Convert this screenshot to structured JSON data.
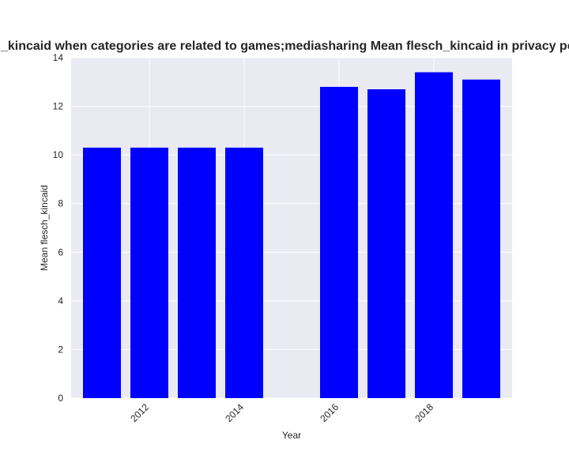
{
  "chart_data": {
    "type": "bar",
    "title": "Mean flesch_kincaid when categories are related to games;mediasharing Mean flesch_kincaid in privacy policies by Year",
    "xlabel": "Year",
    "ylabel": "Mean flesch_kincaid",
    "x": [
      2011,
      2012,
      2013,
      2014,
      2016,
      2017,
      2018,
      2019
    ],
    "values": [
      10.3,
      10.3,
      10.3,
      10.3,
      12.8,
      12.7,
      13.4,
      13.1
    ],
    "xticks": [
      2012,
      2014,
      2016,
      2018
    ],
    "yticks": [
      0,
      2,
      4,
      6,
      8,
      10,
      12,
      14
    ],
    "xlim": [
      2010.35,
      2019.65
    ],
    "ylim": [
      0,
      14
    ],
    "bar_color": "#0000ff",
    "plot_background": "#eaeaf2",
    "grid": true,
    "grid_color": "#ffffff"
  }
}
